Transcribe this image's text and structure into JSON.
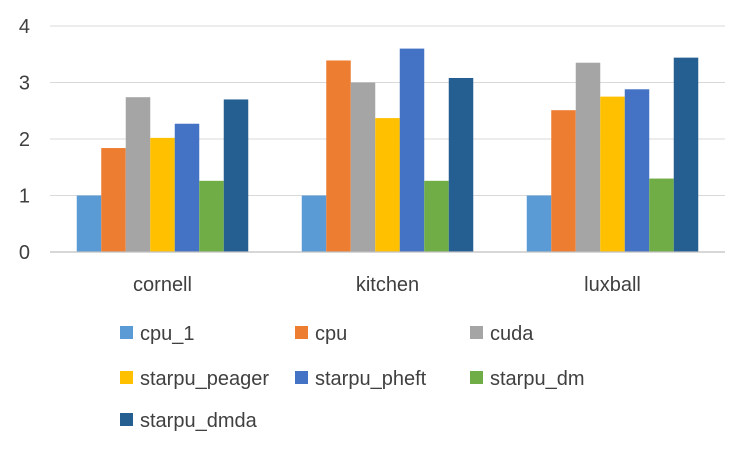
{
  "chart_data": {
    "type": "bar",
    "title": "",
    "xlabel": "",
    "ylabel": "",
    "categories": [
      "cornell",
      "kitchen",
      "luxball"
    ],
    "ylim": [
      0,
      4
    ],
    "yticks": [
      0,
      1,
      2,
      3,
      4
    ],
    "grid": true,
    "legend_position": "bottom",
    "series": [
      {
        "name": "cpu_1",
        "color": "#5b9bd5",
        "values": [
          1.0,
          1.0,
          1.0
        ]
      },
      {
        "name": "cpu",
        "color": "#ed7d31",
        "values": [
          1.84,
          3.39,
          2.51
        ]
      },
      {
        "name": "cuda",
        "color": "#a5a5a5",
        "values": [
          2.74,
          3.0,
          3.35
        ]
      },
      {
        "name": "starpu_peager",
        "color": "#ffc000",
        "values": [
          2.02,
          2.37,
          2.75
        ]
      },
      {
        "name": "starpu_pheft",
        "color": "#4472c4",
        "values": [
          2.27,
          3.6,
          2.88
        ]
      },
      {
        "name": "starpu_dm",
        "color": "#70ad47",
        "values": [
          1.26,
          1.26,
          1.3
        ]
      },
      {
        "name": "starpu_dmda",
        "color": "#255e91",
        "values": [
          2.7,
          3.08,
          3.44
        ]
      }
    ]
  }
}
